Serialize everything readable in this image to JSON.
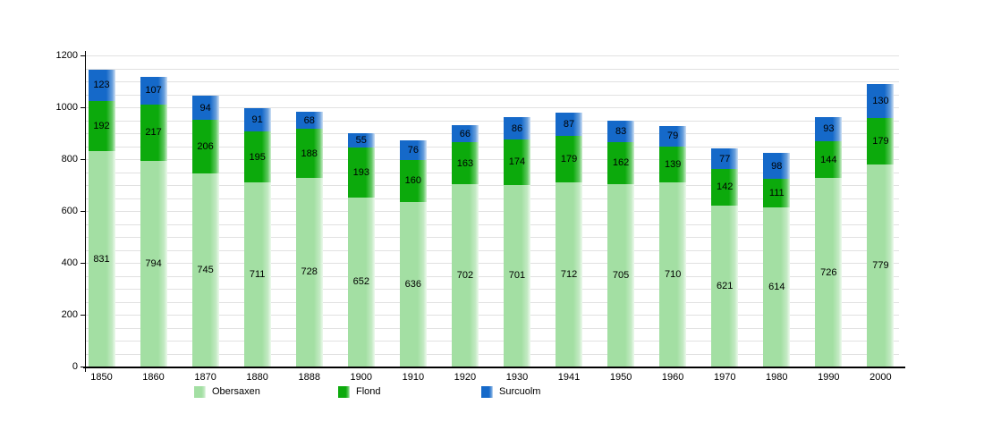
{
  "chart_data": {
    "type": "bar",
    "stacked": true,
    "title": "",
    "xlabel": "",
    "ylabel": "",
    "categories": [
      "1850",
      "1860",
      "1870",
      "1880",
      "1888",
      "1900",
      "1910",
      "1920",
      "1930",
      "1941",
      "1950",
      "1960",
      "1970",
      "1980",
      "1990",
      "2000"
    ],
    "series": [
      {
        "name": "Obersaxen",
        "color": "#a3dfa3",
        "values": [
          831,
          794,
          745,
          711,
          728,
          652,
          636,
          702,
          701,
          712,
          705,
          710,
          621,
          614,
          726,
          779
        ]
      },
      {
        "name": "Flond",
        "color": "#0caa0c",
        "values": [
          192,
          217,
          206,
          195,
          188,
          193,
          160,
          163,
          174,
          179,
          162,
          139,
          142,
          111,
          144,
          179
        ]
      },
      {
        "name": "Surcuolm",
        "color": "#1569c9",
        "values": [
          123,
          107,
          94,
          91,
          68,
          55,
          76,
          66,
          86,
          87,
          83,
          79,
          77,
          98,
          93,
          130
        ]
      }
    ],
    "ylim": [
      0,
      1200
    ],
    "ytick_step": 200,
    "grid_step": 50,
    "grid": true,
    "legend_position": "bottom",
    "value_labels": "inside-center",
    "colors": {
      "gridline": "#e1e1e1",
      "axis": "#000000",
      "text": "#000000",
      "background": "#ffffff"
    }
  }
}
